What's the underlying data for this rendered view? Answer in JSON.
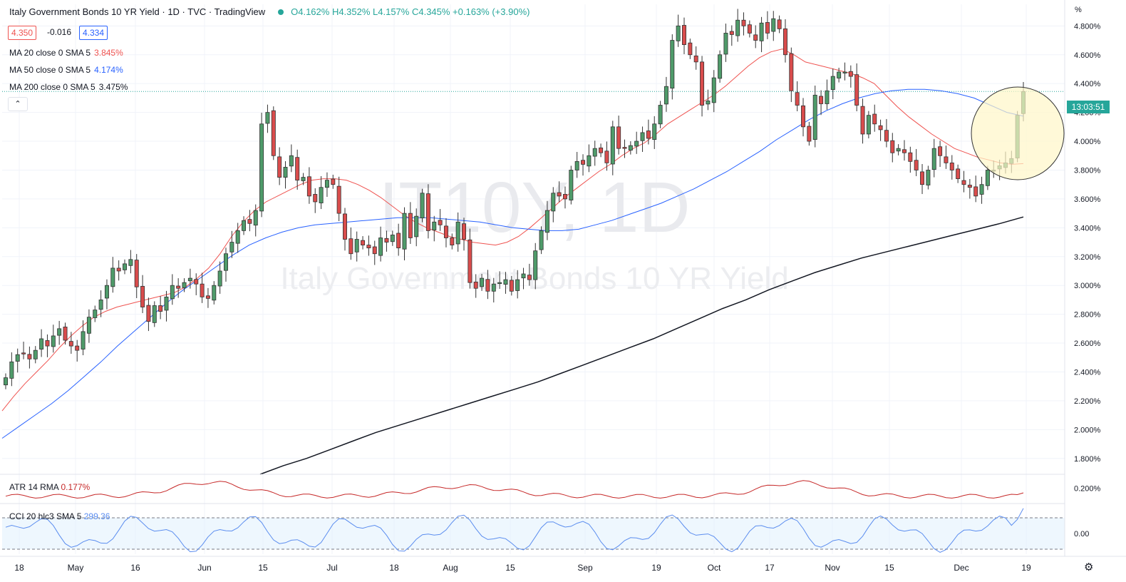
{
  "header": {
    "title": "Italy Government Bonds 10 YR Yield · 1D · TVC · TradingView",
    "ohlc": "O4.162% H4.352% L4.157% C4.345% +0.163% (+3.90%)",
    "bid": "4.350",
    "spread": "-0.016",
    "ask": "4.334",
    "collapse_icon": "chevron-up-icon"
  },
  "indicators": {
    "ma20": {
      "label": "MA 20 close 0 SMA 5",
      "value": "3.845%",
      "color": "#ef5350"
    },
    "ma50": {
      "label": "MA 50 close 0 SMA 5",
      "value": "4.174%",
      "color": "#2962ff"
    },
    "ma200": {
      "label": "MA 200 close 0 SMA 5",
      "value": "3.475%",
      "color": "#131722"
    },
    "atr": {
      "label": "ATR 14 RMA",
      "value": "0.177%",
      "color": "#c62828"
    },
    "cci": {
      "label": "CCI 20 hlc3 SMA 5",
      "value": "299.36",
      "color": "#5b8def"
    }
  },
  "countdown": "13:03:51",
  "percent_symbol": "%",
  "settings_icon": "gear-icon",
  "watermark": {
    "ticker": "IT10Y, 1D",
    "name": "Italy Government Bonds 10 YR Yield"
  },
  "colors": {
    "up": "#4f9b6a",
    "down": "#d94c4c",
    "highlight": "#fff6c7"
  },
  "chart_data": {
    "type": "candlestick",
    "title": "Italy Government Bonds 10 YR Yield",
    "y_unit": "%",
    "ylim": [
      1.7,
      4.95
    ],
    "y_ticks": [
      "4.800%",
      "4.600%",
      "4.400%",
      "4.200%",
      "4.000%",
      "3.800%",
      "3.600%",
      "3.400%",
      "3.200%",
      "3.000%",
      "2.800%",
      "2.600%",
      "2.400%",
      "2.200%",
      "2.000%",
      "1.800%"
    ],
    "x_ticks": [
      "18",
      "May",
      "16",
      "Jun",
      "15",
      "Jul",
      "18",
      "Aug",
      "15",
      "Sep",
      "19",
      "Oct",
      "17",
      "Nov",
      "15",
      "Dec",
      "19"
    ],
    "close": [
      2.36,
      2.47,
      2.52,
      2.53,
      2.49,
      2.55,
      2.63,
      2.58,
      2.65,
      2.7,
      2.62,
      2.58,
      2.55,
      2.68,
      2.78,
      2.83,
      2.9,
      3.0,
      3.12,
      3.1,
      3.15,
      3.18,
      2.99,
      2.85,
      2.75,
      2.86,
      2.82,
      2.92,
      3.0,
      2.98,
      3.02,
      3.05,
      3.01,
      2.92,
      2.91,
      3.0,
      3.1,
      3.22,
      3.3,
      3.38,
      3.45,
      3.43,
      3.52,
      4.12,
      4.2,
      3.9,
      3.75,
      3.82,
      3.9,
      3.73,
      3.75,
      3.62,
      3.58,
      3.68,
      3.73,
      3.7,
      3.5,
      3.32,
      3.22,
      3.32,
      3.28,
      3.26,
      3.22,
      3.33,
      3.3,
      3.35,
      3.26,
      3.5,
      3.33,
      3.48,
      3.64,
      3.38,
      3.44,
      3.42,
      3.33,
      3.28,
      3.44,
      3.32,
      3.02,
      2.98,
      3.05,
      2.96,
      3.01,
      3.02,
      3.04,
      2.96,
      3.04,
      3.08,
      3.04,
      3.24,
      3.38,
      3.52,
      3.64,
      3.62,
      3.6,
      3.8,
      3.86,
      3.84,
      3.9,
      3.95,
      3.92,
      3.85,
      4.1,
      3.95,
      3.95,
      3.97,
      4.0,
      4.06,
      4.02,
      4.12,
      4.25,
      4.38,
      4.7,
      4.8,
      4.67,
      4.6,
      4.55,
      4.25,
      4.28,
      4.44,
      4.6,
      4.75,
      4.74,
      4.84,
      4.8,
      4.75,
      4.7,
      4.82,
      4.75,
      4.85,
      4.78,
      4.6,
      4.35,
      4.25,
      4.1,
      4.0,
      4.32,
      4.26,
      4.35,
      4.45,
      4.48,
      4.48,
      4.45,
      4.25,
      4.05,
      4.18,
      4.12,
      4.08,
      4.0,
      3.92,
      3.95,
      3.92,
      3.86,
      3.8,
      3.7,
      3.8,
      3.95,
      3.9,
      3.85,
      3.8,
      3.74,
      3.7,
      3.68,
      3.62,
      3.7,
      3.8,
      3.8,
      3.83,
      3.85,
      3.88,
      4.18,
      4.345
    ],
    "ma20": [
      2.13,
      2.23,
      2.32,
      2.4,
      2.48,
      2.57,
      2.65,
      2.72,
      2.78,
      2.82,
      2.85,
      2.87,
      2.89,
      2.91,
      2.93,
      2.95,
      2.99,
      3.05,
      3.12,
      3.22,
      3.34,
      3.44,
      3.52,
      3.58,
      3.62,
      3.66,
      3.7,
      3.73,
      3.74,
      3.74,
      3.73,
      3.7,
      3.66,
      3.61,
      3.55,
      3.49,
      3.44,
      3.4,
      3.37,
      3.34,
      3.32,
      3.3,
      3.29,
      3.28,
      3.3,
      3.34,
      3.4,
      3.47,
      3.54,
      3.61,
      3.67,
      3.73,
      3.79,
      3.84,
      3.9,
      3.95,
      3.99,
      4.05,
      4.12,
      4.17,
      4.22,
      4.27,
      4.32,
      4.38,
      4.45,
      4.52,
      4.58,
      4.62,
      4.64,
      4.6,
      4.55,
      4.53,
      4.51,
      4.49,
      4.47,
      4.44,
      4.4,
      4.32,
      4.24,
      4.17,
      4.11,
      4.05,
      4.0,
      3.95,
      3.92,
      3.89,
      3.87,
      3.85,
      3.84,
      3.845
    ],
    "ma50": [
      1.94,
      2.02,
      2.1,
      2.18,
      2.27,
      2.37,
      2.47,
      2.58,
      2.68,
      2.78,
      2.88,
      2.97,
      3.05,
      3.13,
      3.21,
      3.28,
      3.33,
      3.37,
      3.4,
      3.42,
      3.43,
      3.44,
      3.45,
      3.46,
      3.47,
      3.47,
      3.47,
      3.46,
      3.45,
      3.44,
      3.42,
      3.4,
      3.39,
      3.38,
      3.38,
      3.39,
      3.42,
      3.45,
      3.49,
      3.53,
      3.57,
      3.62,
      3.67,
      3.73,
      3.79,
      3.86,
      3.93,
      4.01,
      4.08,
      4.15,
      4.21,
      4.26,
      4.3,
      4.33,
      4.35,
      4.36,
      4.36,
      4.35,
      4.33,
      4.3,
      4.25,
      4.2,
      4.174
    ],
    "ma200": [
      1.69,
      1.75,
      1.8,
      1.86,
      1.92,
      1.98,
      2.03,
      2.08,
      2.13,
      2.18,
      2.23,
      2.28,
      2.33,
      2.39,
      2.45,
      2.51,
      2.57,
      2.63,
      2.7,
      2.77,
      2.84,
      2.9,
      2.97,
      3.03,
      3.09,
      3.14,
      3.19,
      3.23,
      3.27,
      3.31,
      3.35,
      3.39,
      3.43,
      3.475
    ],
    "atr_percent": {
      "last": 0.177,
      "range": [
        0.13,
        0.26
      ]
    },
    "cci": {
      "last": 299.36,
      "bands": [
        100,
        -100
      ]
    }
  }
}
